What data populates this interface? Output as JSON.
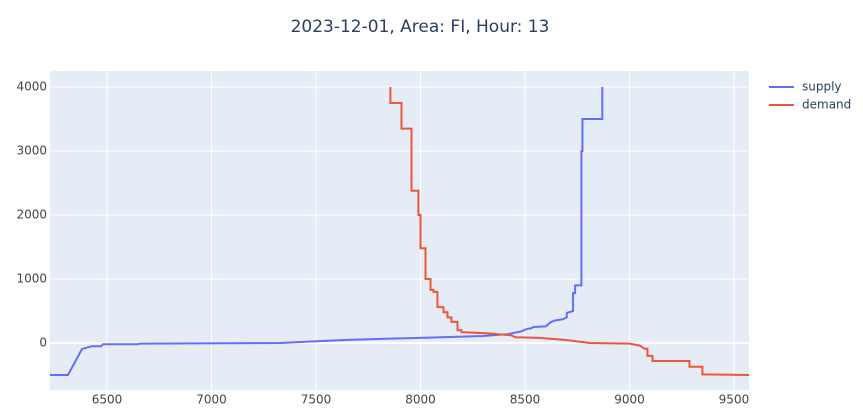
{
  "chart_data": {
    "type": "line",
    "title": "2023-12-01, Area: FI, Hour: 13",
    "xlim": [
      6227,
      9572
    ],
    "ylim": [
      -734,
      4250
    ],
    "xticks": [
      6500,
      7000,
      7500,
      8000,
      8500,
      9000,
      9500
    ],
    "yticks": [
      0,
      1000,
      2000,
      3000,
      4000
    ],
    "grid": true,
    "legend": "top-right",
    "series": [
      {
        "name": "supply",
        "color": "#636efa",
        "x": [
          6227,
          6313,
          6380,
          6428,
          6471,
          6481,
          6644,
          6660,
          7330,
          7450,
          7650,
          8000,
          8300,
          8420,
          8480,
          8510,
          8530,
          8540,
          8600,
          8620,
          8640,
          8680,
          8700,
          8700,
          8720,
          8730,
          8730,
          8740,
          8740,
          8770,
          8770,
          8775,
          8775,
          8870,
          8870
        ],
        "values": [
          -500,
          -500,
          -94,
          -50,
          -50,
          -20,
          -20,
          -10,
          0,
          20,
          50,
          80,
          110,
          140,
          180,
          220,
          230,
          250,
          260,
          320,
          350,
          370,
          400,
          470,
          490,
          500,
          780,
          780,
          900,
          900,
          3000,
          3000,
          3500,
          3500,
          4000
        ]
      },
      {
        "name": "demand",
        "color": "#ef553b",
        "x": [
          7856,
          7856,
          7909,
          7909,
          7957,
          7957,
          7990,
          7990,
          8000,
          8000,
          8024,
          8024,
          8048,
          8048,
          8062,
          8062,
          8081,
          8081,
          8110,
          8110,
          8129,
          8129,
          8148,
          8148,
          8177,
          8177,
          8196,
          8196,
          8325,
          8435,
          8455,
          8570,
          8690,
          8810,
          9000,
          9050,
          9072,
          9086,
          9086,
          9110,
          9110,
          9139,
          9287,
          9287,
          9349,
          9349,
          9572
        ],
        "values": [
          4000,
          3750,
          3750,
          3350,
          3350,
          2380,
          2380,
          2000,
          2000,
          1480,
          1480,
          1000,
          1000,
          830,
          830,
          800,
          800,
          560,
          560,
          480,
          480,
          400,
          400,
          330,
          330,
          200,
          200,
          170,
          150,
          120,
          90,
          80,
          50,
          0,
          -10,
          -40,
          -90,
          -90,
          -200,
          -200,
          -280,
          -280,
          -280,
          -370,
          -370,
          -490,
          -500
        ]
      }
    ]
  }
}
